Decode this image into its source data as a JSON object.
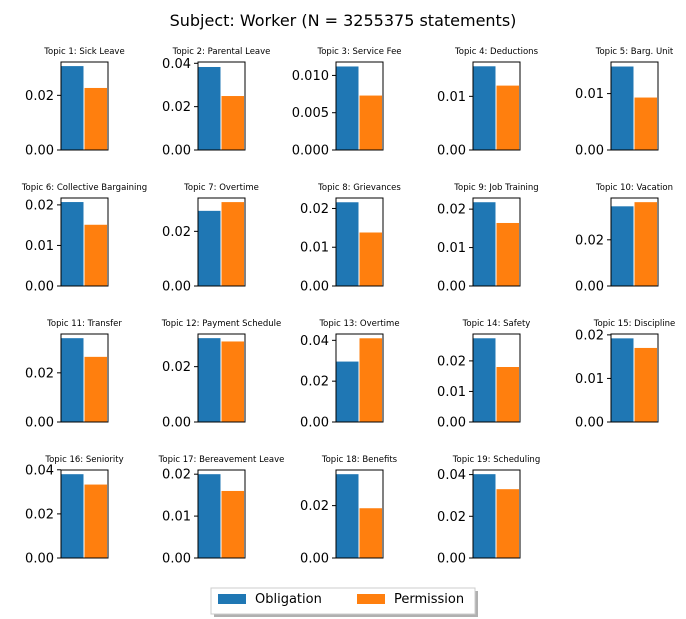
{
  "chart_data": {
    "type": "bar",
    "title": "Subject: Worker (N = 3255375 statements)",
    "legend": {
      "placement": "bottom-center",
      "entries": [
        "Obligation",
        "Permission"
      ]
    },
    "colors": {
      "Obligation": "#1f77b4",
      "Permission": "#ff7f0e"
    },
    "subplots": [
      {
        "title": "Topic 1: Sick Leave",
        "values": [
          0.0307,
          0.0227
        ],
        "ylim": [
          0,
          0.0322
        ],
        "ticks": [
          "0.00",
          "0.02"
        ]
      },
      {
        "title": "Topic 2: Parental Leave",
        "values": [
          0.0383,
          0.0249
        ],
        "ylim": [
          0,
          0.0406
        ],
        "ticks": [
          "0.00",
          "0.02",
          "0.04"
        ]
      },
      {
        "title": "Topic 3: Service Fee",
        "values": [
          0.0112,
          0.0073
        ],
        "ylim": [
          0,
          0.0118
        ],
        "ticks": [
          "0.000",
          "0.005",
          "0.010"
        ]
      },
      {
        "title": "Topic 4: Deductions",
        "values": [
          0.0156,
          0.012
        ],
        "ylim": [
          0,
          0.0164
        ],
        "ticks": [
          "0.00",
          "0.01"
        ]
      },
      {
        "title": "Topic 5: Barg. Unit",
        "values": [
          0.0148,
          0.0093
        ],
        "ylim": [
          0,
          0.0156
        ],
        "ticks": [
          "0.00",
          "0.01"
        ]
      },
      {
        "title": "Topic 6: Collective Bargaining",
        "values": [
          0.0207,
          0.0151
        ],
        "ylim": [
          0,
          0.0217
        ],
        "ticks": [
          "0.00",
          "0.01",
          "0.02"
        ]
      },
      {
        "title": "Topic 7: Overtime",
        "values": [
          0.0275,
          0.0307
        ],
        "ylim": [
          0,
          0.0322
        ],
        "ticks": [
          "0.00",
          "0.02"
        ]
      },
      {
        "title": "Topic 8: Grievances",
        "values": [
          0.0216,
          0.0138
        ],
        "ylim": [
          0,
          0.0227
        ],
        "ticks": [
          "0.00",
          "0.01",
          "0.02"
        ]
      },
      {
        "title": "Topic 9: Job Training",
        "values": [
          0.0218,
          0.0164
        ],
        "ylim": [
          0,
          0.0229
        ],
        "ticks": [
          "0.00",
          "0.01",
          "0.02"
        ]
      },
      {
        "title": "Topic 10: Vacation",
        "values": [
          0.0345,
          0.0363
        ],
        "ylim": [
          0,
          0.0381
        ],
        "ticks": [
          "0.00",
          "0.02"
        ]
      },
      {
        "title": "Topic 11: Transfer",
        "values": [
          0.0341,
          0.0265
        ],
        "ylim": [
          0,
          0.0358
        ],
        "ticks": [
          "0.00",
          "0.02"
        ]
      },
      {
        "title": "Topic 12: Payment Schedule",
        "values": [
          0.0303,
          0.0291
        ],
        "ylim": [
          0,
          0.0318
        ],
        "ticks": [
          "0.00",
          "0.02"
        ]
      },
      {
        "title": "Topic 13: Overtime",
        "values": [
          0.0296,
          0.041
        ],
        "ylim": [
          0,
          0.0431
        ],
        "ticks": [
          "0.00",
          "0.02",
          "0.04"
        ]
      },
      {
        "title": "Topic 14: Safety",
        "values": [
          0.0274,
          0.018
        ],
        "ylim": [
          0,
          0.0288
        ],
        "ticks": [
          "0.00",
          "0.01",
          "0.02"
        ]
      },
      {
        "title": "Topic 15: Discipline",
        "values": [
          0.0192,
          0.017
        ],
        "ylim": [
          0,
          0.0202
        ],
        "ticks": [
          "0.00",
          "0.01",
          "0.02"
        ]
      },
      {
        "title": "Topic 16: Seniority",
        "values": [
          0.038,
          0.0333
        ],
        "ylim": [
          0,
          0.0399
        ],
        "ticks": [
          "0.00",
          "0.02",
          "0.04"
        ]
      },
      {
        "title": "Topic 17: Bereavement Leave",
        "values": [
          0.02,
          0.016
        ],
        "ylim": [
          0,
          0.021
        ],
        "ticks": [
          "0.00",
          "0.01",
          "0.02"
        ]
      },
      {
        "title": "Topic 18: Benefits",
        "values": [
          0.032,
          0.019
        ],
        "ylim": [
          0,
          0.0336
        ],
        "ticks": [
          "0.00",
          "0.02"
        ]
      },
      {
        "title": "Topic 19: Scheduling",
        "values": [
          0.0402,
          0.033
        ],
        "ylim": [
          0,
          0.0422
        ],
        "ticks": [
          "0.00",
          "0.02",
          "0.04"
        ]
      }
    ]
  }
}
